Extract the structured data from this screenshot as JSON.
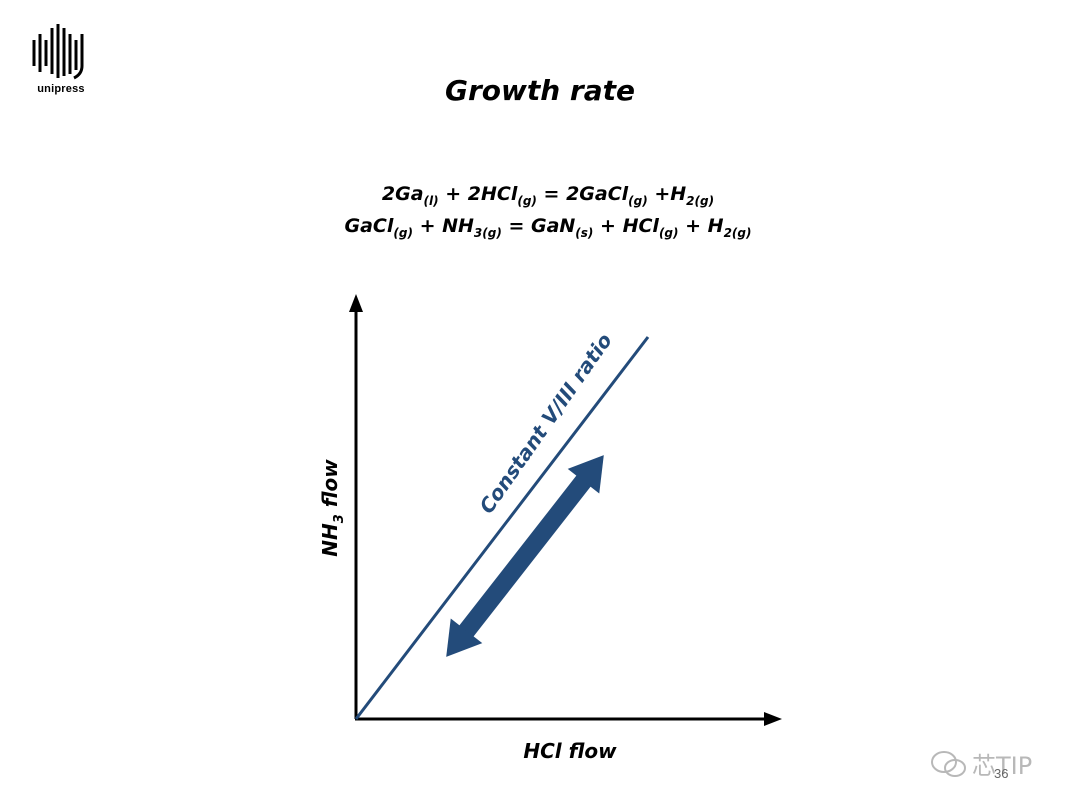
{
  "logo": {
    "text": "unipress"
  },
  "title": "Growth rate",
  "equations": {
    "eq1": {
      "t1": "2Ga",
      "s1": "(l)",
      "t2": " + 2HCl",
      "s2": "(g)",
      "t3": " = 2GaCl",
      "s3": "(g)",
      "t4": " +H",
      "s4": "2(g)"
    },
    "eq2": {
      "t1": "GaCl",
      "s1": "(g)",
      "t2": " + NH",
      "s2": "3(g)",
      "t3": " = GaN",
      "s3": "(s)",
      "t4": " + HCl",
      "s4": "(g)",
      "t5": " + H",
      "s5": "2(g)"
    }
  },
  "diagram": {
    "x_axis_label": "HCl flow",
    "y_axis_label_main": "NH",
    "y_axis_label_sub": "3",
    "y_axis_label_rest": " flow",
    "line_label": "Constant V/III ratio",
    "color": "#234b7a"
  },
  "footer": {
    "page_number": "36",
    "watermark": "芯TIP"
  }
}
